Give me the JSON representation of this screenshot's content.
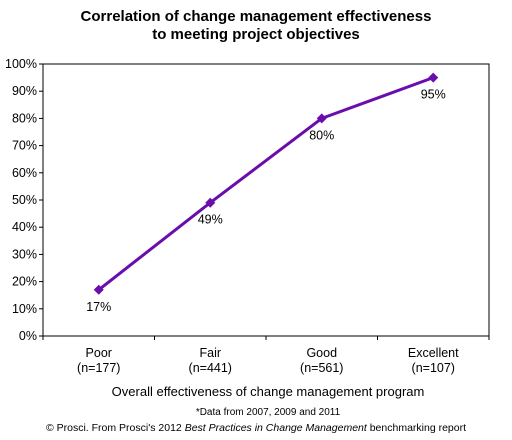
{
  "chart_data": {
    "type": "line",
    "title": [
      "Correlation of change management effectiveness",
      "to meeting project objectives"
    ],
    "categories": [
      [
        "Poor",
        "(n=177)"
      ],
      [
        "Fair",
        "(n=441)"
      ],
      [
        "Good",
        "(n=561)"
      ],
      [
        "Excellent",
        "(n=107)"
      ]
    ],
    "series": [
      {
        "values": [
          17,
          49,
          80,
          95
        ]
      }
    ],
    "data_labels": [
      "17%",
      "49%",
      "80%",
      "95%"
    ],
    "xlabel": "Overall effectiveness of change management program",
    "ylabel": "",
    "ylim": [
      0,
      100
    ],
    "yticks": [
      "0%",
      "10%",
      "20%",
      "30%",
      "40%",
      "50%",
      "60%",
      "70%",
      "80%",
      "90%",
      "100%"
    ],
    "grid": false,
    "legend": "none",
    "line_color": "#6A0DAD",
    "note": "*Data from 2007, 2009 and 2011",
    "credit": {
      "prefix": "© Prosci. From Prosci's 2012 ",
      "italic": "Best Practices in Change Management",
      "suffix": " benchmarking report"
    }
  }
}
